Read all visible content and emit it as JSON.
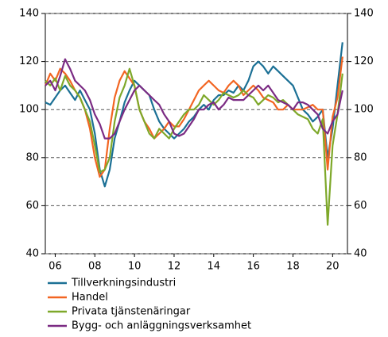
{
  "chart_data": {
    "type": "line",
    "x": [
      2006,
      2006.25,
      2006.5,
      2006.75,
      2007,
      2007.25,
      2007.5,
      2007.75,
      2008,
      2008.25,
      2008.5,
      2008.75,
      2009,
      2009.25,
      2009.5,
      2009.75,
      2010,
      2010.25,
      2010.5,
      2010.75,
      2011,
      2011.25,
      2011.5,
      2011.75,
      2012,
      2012.25,
      2012.5,
      2012.75,
      2013,
      2013.25,
      2013.5,
      2013.75,
      2014,
      2014.25,
      2014.5,
      2014.75,
      2015,
      2015.25,
      2015.5,
      2015.75,
      2016,
      2016.25,
      2016.5,
      2016.75,
      2017,
      2017.25,
      2017.5,
      2017.75,
      2018,
      2018.25,
      2018.5,
      2018.75,
      2019,
      2019.25,
      2019.5,
      2019.75,
      2020,
      2020.25,
      2020.5,
      2020.75,
      2021
    ],
    "series": [
      {
        "name": "Tillverkningsindustri",
        "color": "#1b7095",
        "values": [
          103,
          102,
          105,
          108,
          110,
          107,
          104,
          108,
          104,
          100,
          90,
          75,
          68,
          75,
          88,
          95,
          103,
          108,
          112,
          110,
          108,
          106,
          100,
          95,
          92,
          90,
          88,
          90,
          92,
          95,
          97,
          100,
          102,
          100,
          104,
          106,
          106,
          108,
          107,
          110,
          108,
          112,
          118,
          120,
          118,
          115,
          118,
          116,
          114,
          112,
          110,
          105,
          100,
          98,
          95,
          97,
          100,
          80,
          92,
          110,
          128
        ]
      },
      {
        "name": "Handel",
        "color": "#f26522",
        "values": [
          110,
          115,
          112,
          117,
          115,
          112,
          108,
          105,
          100,
          92,
          80,
          72,
          75,
          92,
          105,
          112,
          116,
          113,
          110,
          100,
          95,
          92,
          88,
          90,
          92,
          95,
          93,
          93,
          96,
          100,
          104,
          108,
          110,
          112,
          110,
          108,
          107,
          110,
          112,
          110,
          106,
          108,
          110,
          108,
          105,
          104,
          103,
          100,
          100,
          102,
          100,
          100,
          100,
          101,
          102,
          100,
          100,
          75,
          97,
          105,
          122
        ]
      },
      {
        "name": "Privata tjänstenäringar",
        "color": "#7ea82a",
        "values": [
          112,
          110,
          113,
          108,
          114,
          110,
          108,
          105,
          100,
          95,
          85,
          74,
          75,
          80,
          95,
          105,
          110,
          117,
          110,
          100,
          95,
          90,
          88,
          92,
          90,
          88,
          92,
          95,
          98,
          100,
          100,
          102,
          106,
          104,
          102,
          104,
          107,
          106,
          105,
          106,
          108,
          106,
          105,
          102,
          104,
          106,
          105,
          103,
          104,
          102,
          100,
          98,
          97,
          96,
          92,
          90,
          96,
          52,
          85,
          98,
          115
        ]
      },
      {
        "name": "Bygg- och anläggningsverksamhet",
        "color": "#7b2b83",
        "values": [
          110,
          112,
          108,
          114,
          121,
          117,
          112,
          110,
          108,
          104,
          98,
          94,
          88,
          88,
          90,
          95,
          100,
          104,
          108,
          110,
          108,
          106,
          104,
          102,
          98,
          95,
          90,
          89,
          90,
          93,
          96,
          100,
          100,
          102,
          103,
          100,
          102,
          105,
          104,
          104,
          104,
          106,
          108,
          110,
          108,
          110,
          107,
          104,
          103,
          102,
          100,
          103,
          103,
          102,
          100,
          98,
          92,
          90,
          95,
          98,
          108
        ]
      }
    ],
    "xlim": [
      2006,
      2021.25
    ],
    "xticks": [
      {
        "value": 2006.5,
        "label": "06"
      },
      {
        "value": 2008.5,
        "label": "08"
      },
      {
        "value": 2010.5,
        "label": "10"
      },
      {
        "value": 2012.5,
        "label": "12"
      },
      {
        "value": 2014.5,
        "label": "14"
      },
      {
        "value": 2016.5,
        "label": "16"
      },
      {
        "value": 2018.5,
        "label": "18"
      },
      {
        "value": 2020.5,
        "label": "20"
      }
    ],
    "ylim": [
      40,
      140
    ],
    "yticks": [
      40,
      60,
      80,
      100,
      120,
      140
    ],
    "y2lim": [
      40,
      140
    ],
    "y2ticks": [
      40,
      60,
      80,
      100,
      120,
      140
    ],
    "grid": true
  }
}
